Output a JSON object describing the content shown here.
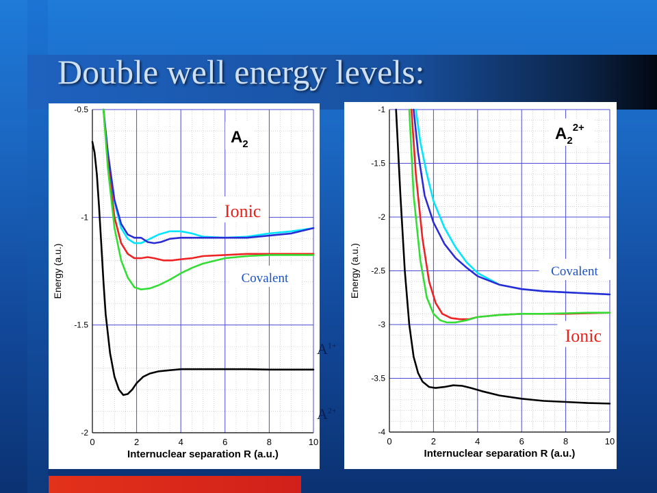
{
  "slide": {
    "title": "Double well energy levels:",
    "side_labels": [
      {
        "base": "A",
        "sup": "1+"
      },
      {
        "base": "A",
        "sup": "2+"
      }
    ]
  },
  "chart_data": [
    {
      "type": "line",
      "title": "A",
      "title_sub": "2",
      "title_sup": "",
      "xlabel": "Internuclear separation R (a.u.)",
      "ylabel": "Energy (a.u.)",
      "xlim": [
        0,
        10
      ],
      "ylim": [
        -2,
        -0.5
      ],
      "xticks": [
        0,
        2,
        4,
        6,
        8,
        10
      ],
      "yticks": [
        -0.5,
        -1,
        -1.5,
        -2
      ],
      "grid": true,
      "annotations": [
        {
          "text": "Ionic",
          "color": "#e8211a",
          "x": 6.8,
          "y": -0.97,
          "size": 26
        },
        {
          "text": "Covalent",
          "color": "#1b52c4",
          "x": 7.8,
          "y": -1.28,
          "size": 19
        }
      ],
      "series": [
        {
          "color": "#00e6ff",
          "x": [
            0.5,
            0.7,
            1,
            1.3,
            1.6,
            1.9,
            2.2,
            2.6,
            3,
            3.5,
            4,
            4.5,
            5,
            6,
            7,
            8,
            9,
            10
          ],
          "y": [
            -0.5,
            -0.7,
            -0.93,
            -1.05,
            -1.1,
            -1.12,
            -1.12,
            -1.1,
            -1.08,
            -1.065,
            -1.065,
            -1.075,
            -1.09,
            -1.095,
            -1.09,
            -1.075,
            -1.065,
            -1.05
          ]
        },
        {
          "color": "#2b2bd6",
          "x": [
            0.5,
            0.7,
            1,
            1.3,
            1.6,
            1.9,
            2.2,
            2.5,
            2.8,
            3.1,
            3.5,
            4,
            4.5,
            5,
            6,
            7,
            8,
            9,
            10
          ],
          "y": [
            -0.5,
            -0.7,
            -0.92,
            -1.03,
            -1.08,
            -1.095,
            -1.095,
            -1.115,
            -1.12,
            -1.115,
            -1.1,
            -1.095,
            -1.095,
            -1.095,
            -1.095,
            -1.095,
            -1.085,
            -1.075,
            -1.05
          ]
        },
        {
          "color": "#ee2222",
          "x": [
            0.5,
            0.7,
            1,
            1.3,
            1.6,
            1.9,
            2.2,
            2.5,
            2.8,
            3.2,
            3.6,
            4,
            4.5,
            5,
            6,
            7,
            8,
            9,
            10
          ],
          "y": [
            -0.5,
            -0.75,
            -1.0,
            -1.12,
            -1.17,
            -1.19,
            -1.19,
            -1.185,
            -1.19,
            -1.2,
            -1.2,
            -1.195,
            -1.19,
            -1.18,
            -1.175,
            -1.17,
            -1.17,
            -1.17,
            -1.17
          ]
        },
        {
          "color": "#33dd33",
          "x": [
            0.5,
            0.7,
            1,
            1.3,
            1.6,
            1.9,
            2.2,
            2.6,
            3,
            3.5,
            4,
            4.5,
            5,
            6,
            7,
            8,
            9,
            10
          ],
          "y": [
            -0.5,
            -0.77,
            -1.05,
            -1.2,
            -1.28,
            -1.325,
            -1.335,
            -1.33,
            -1.315,
            -1.29,
            -1.26,
            -1.235,
            -1.215,
            -1.19,
            -1.18,
            -1.175,
            -1.175,
            -1.175
          ]
        },
        {
          "color": "#000000",
          "x": [
            0,
            0.1,
            0.2,
            0.3,
            0.4,
            0.5,
            0.6,
            0.8,
            1,
            1.2,
            1.4,
            1.6,
            1.8,
            2,
            2.3,
            2.6,
            3,
            3.5,
            4,
            5,
            6,
            7,
            8,
            9,
            10
          ],
          "y": [
            -0.65,
            -0.7,
            -0.8,
            -0.95,
            -1.12,
            -1.3,
            -1.45,
            -1.63,
            -1.74,
            -1.8,
            -1.825,
            -1.82,
            -1.8,
            -1.77,
            -1.74,
            -1.725,
            -1.715,
            -1.71,
            -1.705,
            -1.705,
            -1.705,
            -1.705,
            -1.707,
            -1.707,
            -1.707
          ]
        }
      ]
    },
    {
      "type": "line",
      "title": "A",
      "title_sub": "2",
      "title_sup": "2+",
      "xlabel": "Internuclear separation R (a.u.)",
      "ylabel": "Energy (a.u.)",
      "xlim": [
        0,
        10
      ],
      "ylim": [
        -4,
        -1
      ],
      "xticks": [
        0,
        2,
        4,
        6,
        8,
        10
      ],
      "yticks": [
        -1,
        -1.5,
        -2,
        -2.5,
        -3,
        -3.5,
        -4
      ],
      "grid": true,
      "annotations": [
        {
          "text": "Covalent",
          "color": "#1b52c4",
          "x": 8.4,
          "y": -2.5,
          "size": 19
        },
        {
          "text": "Ionic",
          "color": "#e8211a",
          "x": 8.8,
          "y": -3.1,
          "size": 26
        }
      ],
      "series": [
        {
          "color": "#00e6ff",
          "x": [
            1.2,
            1.4,
            1.7,
            2,
            2.5,
            3,
            3.5,
            4,
            5,
            6,
            7,
            8,
            9,
            10
          ],
          "y": [
            -1.0,
            -1.3,
            -1.6,
            -1.85,
            -2.1,
            -2.28,
            -2.42,
            -2.52,
            -2.63,
            -2.67,
            -2.69,
            -2.7,
            -2.71,
            -2.72
          ]
        },
        {
          "color": "#2b2bd6",
          "x": [
            1.1,
            1.3,
            1.6,
            2,
            2.5,
            3,
            3.5,
            4,
            5,
            6,
            7,
            8,
            9,
            10
          ],
          "y": [
            -1.0,
            -1.4,
            -1.8,
            -2.05,
            -2.25,
            -2.38,
            -2.47,
            -2.55,
            -2.63,
            -2.67,
            -2.69,
            -2.7,
            -2.71,
            -2.72
          ]
        },
        {
          "color": "#ee2222",
          "x": [
            1.0,
            1.2,
            1.5,
            1.8,
            2.1,
            2.4,
            2.8,
            3.2,
            3.6,
            4,
            5,
            6,
            7,
            8,
            9,
            10
          ],
          "y": [
            -1.0,
            -1.6,
            -2.2,
            -2.6,
            -2.8,
            -2.9,
            -2.94,
            -2.95,
            -2.95,
            -2.93,
            -2.91,
            -2.9,
            -2.9,
            -2.9,
            -2.895,
            -2.89
          ]
        },
        {
          "color": "#33dd33",
          "x": [
            0.9,
            1.1,
            1.4,
            1.7,
            2,
            2.3,
            2.6,
            3,
            3.5,
            4,
            5,
            6,
            7,
            8,
            9,
            10
          ],
          "y": [
            -1.0,
            -1.8,
            -2.4,
            -2.75,
            -2.9,
            -2.96,
            -2.98,
            -2.98,
            -2.96,
            -2.93,
            -2.91,
            -2.9,
            -2.9,
            -2.895,
            -2.89,
            -2.89
          ]
        },
        {
          "color": "#000000",
          "x": [
            0.3,
            0.5,
            0.7,
            0.9,
            1.1,
            1.3,
            1.5,
            1.8,
            2.1,
            2.5,
            2.9,
            3.3,
            3.7,
            4.2,
            5,
            6,
            7,
            8,
            9,
            10
          ],
          "y": [
            -1.0,
            -1.8,
            -2.5,
            -3.0,
            -3.3,
            -3.45,
            -3.53,
            -3.58,
            -3.59,
            -3.58,
            -3.565,
            -3.57,
            -3.59,
            -3.62,
            -3.66,
            -3.69,
            -3.71,
            -3.72,
            -3.73,
            -3.735
          ]
        }
      ]
    }
  ]
}
